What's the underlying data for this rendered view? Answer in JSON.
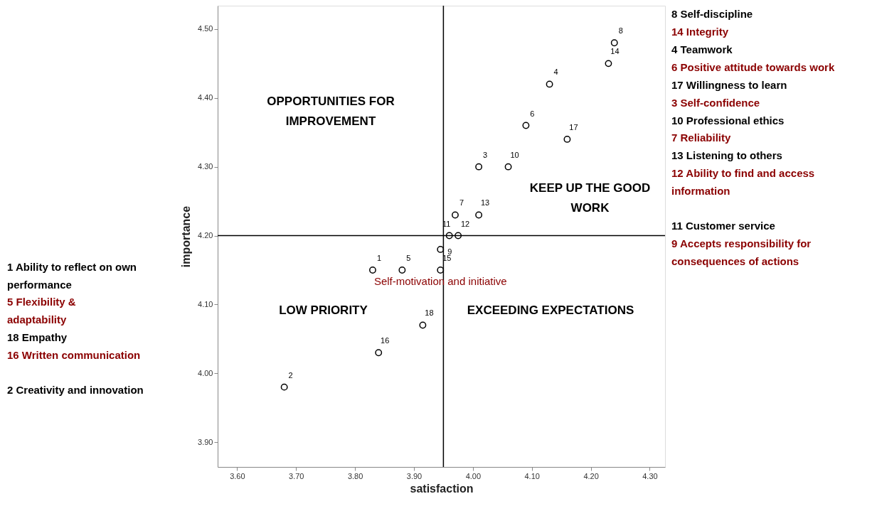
{
  "chart_data": {
    "type": "scatter",
    "xlabel": "satisfaction",
    "ylabel": "importance",
    "x": [
      3.83,
      3.68,
      4.01,
      4.13,
      3.88,
      4.09,
      3.97,
      4.24,
      3.945,
      4.06,
      3.96,
      3.975,
      4.01,
      4.23,
      3.945,
      3.84,
      4.16,
      3.915
    ],
    "series": [
      {
        "color": "#000000",
        "values": [
          4.15,
          3.98,
          4.3,
          4.42,
          4.15,
          4.36,
          4.23,
          4.48,
          4.18,
          4.3,
          4.2,
          4.2,
          4.23,
          4.45,
          4.15,
          4.03,
          4.34,
          4.07
        ]
      }
    ],
    "marker": "circle",
    "grid": false,
    "xlim": [
      3.567,
      4.326
    ],
    "xticks": [
      {
        "value": 3.6,
        "label": "3.60"
      },
      {
        "value": 3.7,
        "label": "3.70"
      },
      {
        "value": 3.8,
        "label": "3.80"
      },
      {
        "value": 3.9,
        "label": "3.90"
      },
      {
        "value": 4.0,
        "label": "4.00"
      },
      {
        "value": 4.1,
        "label": "4.10"
      },
      {
        "value": 4.2,
        "label": "4.20"
      },
      {
        "value": 4.3,
        "label": "4.30"
      }
    ],
    "ylim": [
      3.864,
      4.534
    ],
    "yticks": [
      {
        "value": 3.9,
        "label": "3.90"
      },
      {
        "value": 4.0,
        "label": "4.00"
      },
      {
        "value": 4.1,
        "label": "4.10"
      },
      {
        "value": 4.2,
        "label": "4.20"
      },
      {
        "value": 4.3,
        "label": "4.30"
      },
      {
        "value": 4.4,
        "label": "4.40"
      },
      {
        "value": 4.5,
        "label": "4.50"
      }
    ],
    "ref_lines": [
      {
        "axis": "x",
        "value": 3.95,
        "color": "#000000"
      },
      {
        "axis": "y",
        "value": 4.2,
        "color": "#000000"
      }
    ],
    "annotations": [
      {
        "text": "1",
        "x": 3.83,
        "y": 4.15
      },
      {
        "text": "2",
        "x": 3.68,
        "y": 3.98
      },
      {
        "text": "3",
        "x": 4.01,
        "y": 4.3
      },
      {
        "text": "4",
        "x": 4.13,
        "y": 4.42
      },
      {
        "text": "5",
        "x": 3.88,
        "y": 4.15
      },
      {
        "text": "6",
        "x": 4.09,
        "y": 4.36
      },
      {
        "text": "7",
        "x": 3.97,
        "y": 4.23
      },
      {
        "text": "8",
        "x": 4.24,
        "y": 4.48
      },
      {
        "text": "9",
        "x": 3.945,
        "y": 4.18
      },
      {
        "text": "10",
        "x": 4.06,
        "y": 4.3
      },
      {
        "text": "11",
        "x": 3.96,
        "y": 4.2
      },
      {
        "text": "12",
        "x": 3.975,
        "y": 4.2
      },
      {
        "text": "13",
        "x": 4.01,
        "y": 4.23
      },
      {
        "text": "14",
        "x": 4.23,
        "y": 4.45
      },
      {
        "text": "15",
        "x": 3.945,
        "y": 4.15
      },
      {
        "text": "16",
        "x": 3.84,
        "y": 4.03
      },
      {
        "text": "17",
        "x": 4.16,
        "y": 4.34
      },
      {
        "text": "18",
        "x": 3.915,
        "y": 4.07
      },
      "OPPORTUNITIES FOR IMPROVEMENT",
      "KEEP UP THE GOOD WORK",
      "LOW PRIORITY",
      "EXCEEDING EXPECTATIONS",
      {
        "text": "Self-motivation and initiative",
        "x": 3.945,
        "y": 4.15
      },
      "8 Self-discipline",
      "14  Integrity",
      "4 Teamwork",
      "6 Positive attitude towards work",
      "17 Willingness to learn",
      "3 Self-confidence",
      "10 Professional ethics",
      "7 Reliability",
      "13 Listening to others",
      "12 Ability to find and access information",
      "11 Customer service",
      "9 Accepts responsibility for consequences of actions",
      "1 Ability to reflect on own performance",
      "5 Flexibility & adaptability",
      "18 Empathy",
      "16 Written communication",
      "2 Creativity and innovation"
    ]
  }
}
